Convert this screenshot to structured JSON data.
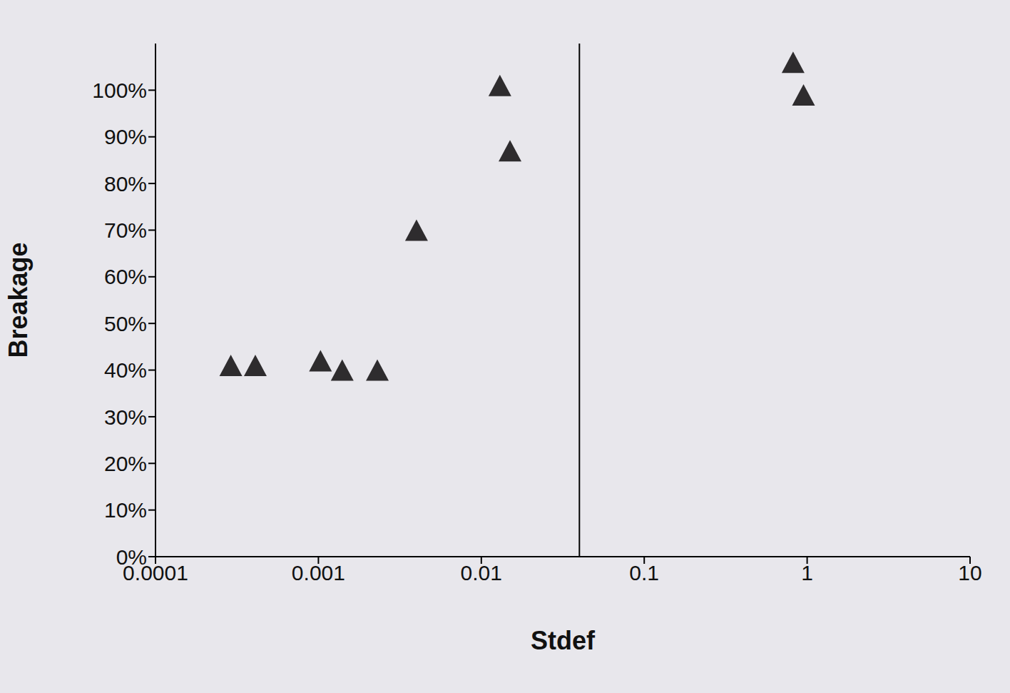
{
  "chart_data": {
    "type": "scatter",
    "x_label": "Stdef",
    "y_label": "Breakage",
    "x": [
      0.00029,
      0.00041,
      0.00103,
      0.0014,
      0.0023,
      0.004,
      0.013,
      0.015,
      0.82,
      0.95
    ],
    "values": [
      41,
      41,
      42,
      40,
      40,
      70,
      101,
      87,
      106,
      99
    ],
    "color": "#2e2c2e",
    "marker": "triangle",
    "log": "x",
    "grid": false,
    "xlim": [
      0.0001,
      10
    ],
    "xticks": [
      0.0001,
      0.001,
      0.01,
      0.1,
      1,
      10
    ],
    "ylim": [
      0,
      110
    ],
    "yticks": [
      {
        "value": 0,
        "label": "0%"
      },
      {
        "value": 10,
        "label": "10%"
      },
      {
        "value": 20,
        "label": "20%"
      },
      {
        "value": 30,
        "label": "30%"
      },
      {
        "value": 40,
        "label": "40%"
      },
      {
        "value": 50,
        "label": "50%"
      },
      {
        "value": 60,
        "label": "60%"
      },
      {
        "value": 70,
        "label": "70%"
      },
      {
        "value": 80,
        "label": "80%"
      },
      {
        "value": 90,
        "label": "90%"
      },
      {
        "value": 100,
        "label": "100%"
      }
    ],
    "vertical_line_x": 0.04
  }
}
